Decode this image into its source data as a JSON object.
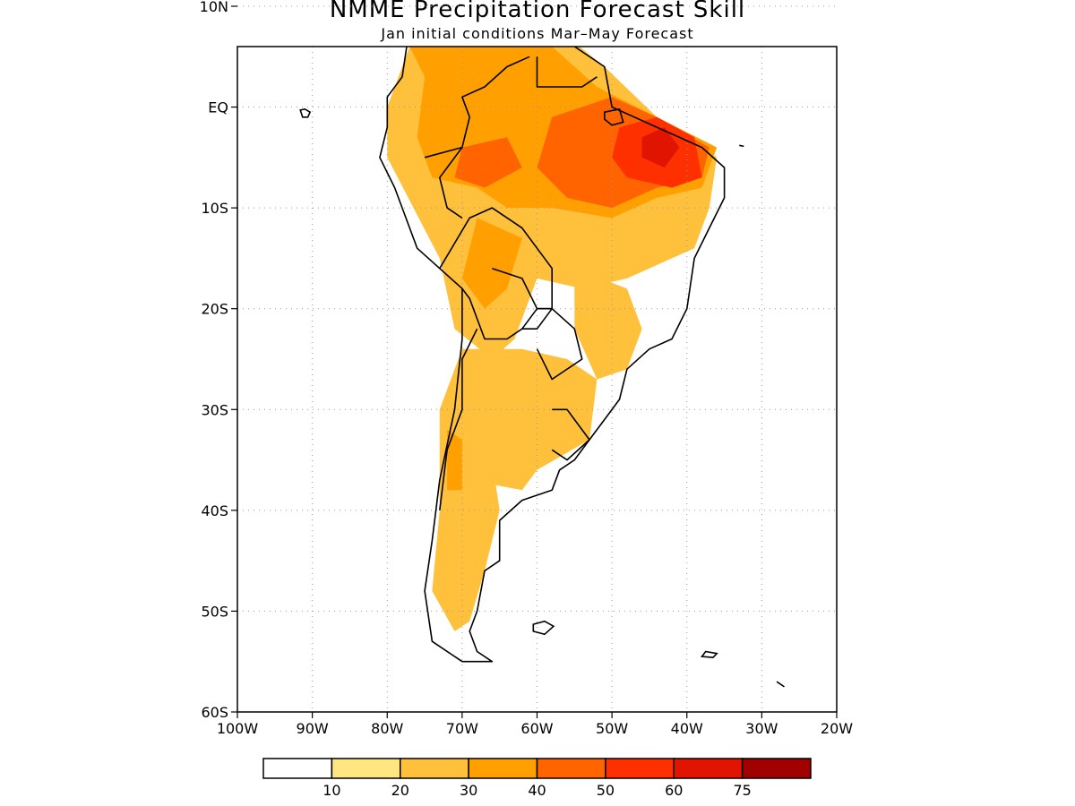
{
  "title": "NMME Precipitation Forecast Skill",
  "subtitle": "Jan initial conditions  Mar–May Forecast",
  "lat_labels": [
    "10N",
    "EQ",
    "10S",
    "20S",
    "30S",
    "40S",
    "50S",
    "60S"
  ],
  "lon_labels": [
    "100W",
    "90W",
    "80W",
    "70W",
    "60W",
    "50W",
    "40W",
    "30W",
    "20W"
  ],
  "colorbar": {
    "colors": [
      "#ffffff",
      "#ffe680",
      "#ffc03c",
      "#ffa000",
      "#ff6400",
      "#ff3000",
      "#e01400",
      "#a00000"
    ],
    "labels": [
      "10",
      "20",
      "30",
      "40",
      "50",
      "60",
      "75"
    ]
  },
  "map": {
    "domain": {
      "lon": [
        -100,
        -20
      ],
      "lat": [
        -60,
        6
      ]
    },
    "grid": "dotted",
    "skill_regions": [
      {
        "value": 20,
        "polygon": [
          [
            -74,
            10
          ],
          [
            -63,
            11
          ],
          [
            -56,
            7
          ],
          [
            -51,
            4
          ],
          [
            -44,
            -1
          ],
          [
            -36,
            -5
          ],
          [
            -37,
            -10
          ],
          [
            -39,
            -14
          ],
          [
            -42,
            -15
          ],
          [
            -48,
            -17
          ],
          [
            -54,
            -18
          ],
          [
            -60,
            -17
          ],
          [
            -63,
            -23
          ],
          [
            -66,
            -25
          ],
          [
            -71,
            -22
          ],
          [
            -73,
            -15
          ],
          [
            -80,
            -5
          ],
          [
            -80,
            0
          ],
          [
            -77,
            6
          ]
        ]
      },
      {
        "value": 20,
        "polygon": [
          [
            -62,
            -24
          ],
          [
            -56,
            -25
          ],
          [
            -52,
            -27
          ],
          [
            -53,
            -33
          ],
          [
            -60,
            -36
          ],
          [
            -62,
            -38
          ],
          [
            -69,
            -37
          ],
          [
            -73,
            -30
          ],
          [
            -70,
            -24
          ]
        ]
      },
      {
        "value": 20,
        "polygon": [
          [
            -73,
            -30
          ],
          [
            -66,
            -35
          ],
          [
            -65,
            -40
          ],
          [
            -67,
            -46
          ],
          [
            -69,
            -51
          ],
          [
            -71,
            -52
          ],
          [
            -74,
            -48
          ],
          [
            -73,
            -40
          ]
        ]
      },
      {
        "value": 20,
        "polygon": [
          [
            -55,
            -16
          ],
          [
            -48,
            -18
          ],
          [
            -46,
            -22
          ],
          [
            -48,
            -26
          ],
          [
            -52,
            -27
          ],
          [
            -55,
            -22
          ]
        ]
      },
      {
        "value": 30,
        "polygon": [
          [
            -73,
            10
          ],
          [
            -63,
            11
          ],
          [
            -58,
            6
          ],
          [
            -52,
            2
          ],
          [
            -44,
            -1
          ],
          [
            -36,
            -4
          ],
          [
            -38,
            -8
          ],
          [
            -44,
            -9
          ],
          [
            -50,
            -11
          ],
          [
            -58,
            -10
          ],
          [
            -64,
            -10
          ],
          [
            -68,
            -8
          ],
          [
            -74,
            -7
          ],
          [
            -76,
            -3
          ],
          [
            -75,
            3
          ],
          [
            -77,
            6
          ]
        ]
      },
      {
        "value": 30,
        "polygon": [
          [
            -68,
            -11
          ],
          [
            -62,
            -13
          ],
          [
            -64,
            -18
          ],
          [
            -67,
            -20
          ],
          [
            -70,
            -17
          ]
        ]
      },
      {
        "value": 30,
        "polygon": [
          [
            -72,
            -32
          ],
          [
            -70,
            -33
          ],
          [
            -70,
            -38
          ],
          [
            -72,
            -38
          ]
        ]
      },
      {
        "value": 40,
        "polygon": [
          [
            -58,
            -1
          ],
          [
            -50,
            1
          ],
          [
            -44,
            -1
          ],
          [
            -37,
            -4
          ],
          [
            -38,
            -7
          ],
          [
            -44,
            -8
          ],
          [
            -50,
            -10
          ],
          [
            -56,
            -9
          ],
          [
            -60,
            -6
          ]
        ]
      },
      {
        "value": 40,
        "polygon": [
          [
            -70,
            -4
          ],
          [
            -64,
            -3
          ],
          [
            -62,
            -6
          ],
          [
            -67,
            -8
          ],
          [
            -71,
            -7
          ]
        ]
      },
      {
        "value": 50,
        "polygon": [
          [
            -49,
            -2
          ],
          [
            -44,
            -1
          ],
          [
            -39,
            -3
          ],
          [
            -38,
            -7
          ],
          [
            -42,
            -8
          ],
          [
            -48,
            -7
          ],
          [
            -50,
            -5
          ]
        ]
      },
      {
        "value": 60,
        "polygon": [
          [
            -46,
            -3
          ],
          [
            -43,
            -2
          ],
          [
            -41,
            -4
          ],
          [
            -43,
            -6
          ],
          [
            -46,
            -5
          ]
        ]
      }
    ],
    "land_outlines": [
      [
        [
          -77,
          8
        ],
        [
          -72,
          12
        ],
        [
          -64,
          11
        ],
        [
          -60,
          9
        ],
        [
          -55,
          6
        ],
        [
          -51,
          4
        ],
        [
          -50,
          0
        ],
        [
          -44,
          -2
        ],
        [
          -38,
          -4
        ],
        [
          -35,
          -6
        ],
        [
          -35,
          -9
        ],
        [
          -37,
          -12
        ],
        [
          -39,
          -15
        ],
        [
          -40,
          -20
        ],
        [
          -42,
          -23
        ],
        [
          -45,
          -24
        ],
        [
          -48,
          -26
        ],
        [
          -49,
          -29
        ],
        [
          -51,
          -31
        ],
        [
          -53,
          -33
        ],
        [
          -55,
          -35
        ],
        [
          -57,
          -36
        ],
        [
          -58,
          -38
        ],
        [
          -62,
          -39
        ],
        [
          -65,
          -41
        ],
        [
          -65,
          -45
        ],
        [
          -67,
          -46
        ],
        [
          -68,
          -50
        ],
        [
          -69,
          -52
        ],
        [
          -68,
          -54
        ],
        [
          -66,
          -55
        ],
        [
          -70,
          -55
        ],
        [
          -74,
          -53
        ],
        [
          -75,
          -48
        ],
        [
          -74,
          -43
        ],
        [
          -73,
          -37
        ],
        [
          -71,
          -30
        ],
        [
          -70,
          -23
        ],
        [
          -70,
          -18
        ],
        [
          -76,
          -14
        ],
        [
          -79,
          -8
        ],
        [
          -81,
          -5
        ],
        [
          -80,
          -2
        ],
        [
          -80,
          1
        ],
        [
          -78,
          3
        ],
        [
          -77,
          8
        ]
      ],
      [
        [
          -105,
          19
        ],
        [
          -98,
          16
        ],
        [
          -92,
          15
        ],
        [
          -88,
          13
        ],
        [
          -86,
          11
        ],
        [
          -84,
          10
        ],
        [
          -82,
          8
        ],
        [
          -80,
          8
        ],
        [
          -78,
          9
        ],
        [
          -77,
          8
        ]
      ],
      [
        [
          -89,
          21
        ],
        [
          -87,
          21
        ],
        [
          -88,
          16
        ],
        [
          -85,
          16
        ],
        [
          -83,
          15
        ],
        [
          -83,
          11
        ],
        [
          -84,
          10
        ]
      ],
      [
        [
          -79,
          9
        ],
        [
          -77,
          8.5
        ],
        [
          -77,
          7
        ]
      ],
      [
        [
          -73,
          -16
        ],
        [
          -69,
          -11
        ],
        [
          -66,
          -10
        ],
        [
          -62,
          -12
        ],
        [
          -60,
          -14
        ],
        [
          -58,
          -16
        ],
        [
          -58,
          -20
        ],
        [
          -60,
          -22
        ],
        [
          -62,
          -22
        ],
        [
          -64,
          -23
        ],
        [
          -67,
          -23
        ],
        [
          -69,
          -19
        ],
        [
          -70,
          -18
        ]
      ],
      [
        [
          -62,
          -22
        ],
        [
          -60,
          -20
        ],
        [
          -58,
          -20
        ],
        [
          -55,
          -22
        ],
        [
          -54,
          -25
        ],
        [
          -58,
          -27
        ],
        [
          -60,
          -24
        ]
      ],
      [
        [
          -73,
          -40
        ],
        [
          -72,
          -34
        ],
        [
          -70,
          -30
        ],
        [
          -70,
          -25
        ],
        [
          -68,
          -22
        ]
      ],
      [
        [
          -75,
          -5
        ],
        [
          -70,
          -4
        ],
        [
          -69,
          -1
        ],
        [
          -70,
          1
        ],
        [
          -67,
          2
        ],
        [
          -64,
          4
        ],
        [
          -61,
          5
        ]
      ],
      [
        [
          -70,
          -11
        ],
        [
          -72,
          -10
        ],
        [
          -73,
          -7
        ],
        [
          -70,
          -4
        ]
      ],
      [
        [
          -58,
          -30
        ],
        [
          -56,
          -30
        ],
        [
          -53,
          -33
        ],
        [
          -56,
          -35
        ],
        [
          -58,
          -34
        ]
      ],
      [
        [
          -66,
          -16
        ],
        [
          -62,
          -17
        ],
        [
          -60,
          -20
        ],
        [
          -58,
          -20
        ]
      ],
      [
        [
          -52,
          3
        ],
        [
          -54,
          2
        ],
        [
          -56,
          2
        ],
        [
          -58,
          2
        ],
        [
          -60,
          2
        ],
        [
          -60,
          5
        ]
      ]
    ],
    "islands": [
      [
        [
          -60.5,
          -51.3
        ],
        [
          -59,
          -51
        ],
        [
          -57.8,
          -51.5
        ],
        [
          -59,
          -52.3
        ],
        [
          -60.5,
          -52
        ]
      ],
      [
        [
          -37.5,
          -54
        ],
        [
          -36,
          -54.2
        ],
        [
          -36.5,
          -54.6
        ],
        [
          -38,
          -54.5
        ]
      ],
      [
        [
          -91.6,
          -0.3
        ],
        [
          -91,
          -0.2
        ],
        [
          -90.3,
          -0.5
        ],
        [
          -90.6,
          -1
        ],
        [
          -91.3,
          -1.0
        ]
      ],
      [
        [
          -51,
          -0.5
        ],
        [
          -49,
          -0.2
        ],
        [
          -48.5,
          -1.5
        ],
        [
          -50,
          -1.8
        ],
        [
          -51,
          -1.2
        ]
      ],
      [
        [
          -61.8,
          10.8
        ],
        [
          -61,
          10.8
        ],
        [
          -61,
          10.1
        ],
        [
          -61.9,
          10.1
        ]
      ],
      [
        [
          -28,
          -57
        ],
        [
          -27,
          -57.5
        ]
      ],
      [
        [
          -33,
          -3.8
        ],
        [
          -32.4,
          -3.9
        ]
      ]
    ]
  }
}
